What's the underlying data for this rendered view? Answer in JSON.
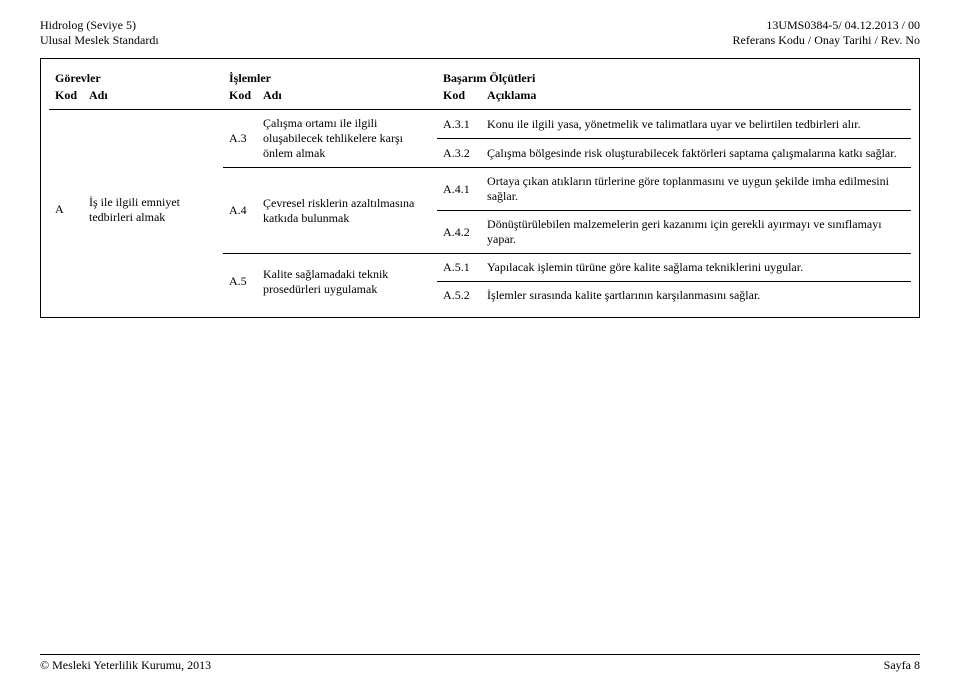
{
  "header": {
    "left_line1": "Hidrolog (Seviye 5)",
    "left_line2": "Ulusal Meslek Standardı",
    "right_line1": "13UMS0384-5/ 04.12.2013 / 00",
    "right_line2": "Referans Kodu / Onay Tarihi / Rev. No"
  },
  "columns": {
    "gorevler": "Görevler",
    "islemler": "İşlemler",
    "basarim": "Başarım Ölçütleri",
    "kod": "Kod",
    "adi": "Adı",
    "aciklama": "Açıklama"
  },
  "gorev": {
    "kod": "A",
    "adi": "İş ile ilgili emniyet tedbirleri almak"
  },
  "rows": [
    {
      "ikod": "A.3",
      "iadi": "Çalışma ortamı ile ilgili oluşabilecek tehlikelere karşı önlem almak",
      "sub": [
        {
          "kod": "A.3.1",
          "text": "Konu ile ilgili yasa, yönetmelik ve talimatlara uyar ve belirtilen tedbirleri alır."
        },
        {
          "kod": "A.3.2",
          "text": "Çalışma bölgesinde risk oluşturabilecek faktörleri saptama çalışmalarına katkı sağlar."
        }
      ]
    },
    {
      "ikod": "A.4",
      "iadi": "Çevresel risklerin azaltılmasına katkıda bulunmak",
      "sub": [
        {
          "kod": "A.4.1",
          "text": "Ortaya çıkan atıkların türlerine göre toplanmasını ve uygun şekilde imha edilmesini sağlar."
        },
        {
          "kod": "A.4.2",
          "text": "Dönüştürülebilen malzemelerin geri kazanımı için gerekli ayırmayı ve sınıflamayı yapar."
        }
      ]
    },
    {
      "ikod": "A.5",
      "iadi": "Kalite sağlamadaki teknik prosedürleri uygulamak",
      "sub": [
        {
          "kod": "A.5.1",
          "text": "Yapılacak işlemin türüne göre kalite sağlama tekniklerini uygular."
        },
        {
          "kod": "A.5.2",
          "text": "İşlemler sırasında kalite şartlarının karşılanmasını sağlar."
        }
      ]
    }
  ],
  "footer": {
    "left": "© Mesleki Yeterlilik Kurumu, 2013",
    "right": "Sayfa 8"
  },
  "style": {
    "font_family": "Times New Roman",
    "body_font_size_pt": 9,
    "text_color": "#000000",
    "background_color": "#ffffff",
    "border_color": "#000000"
  }
}
